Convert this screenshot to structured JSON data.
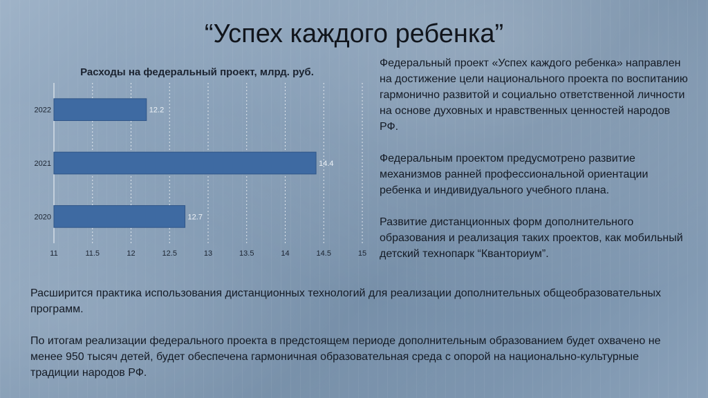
{
  "slide": {
    "title": "“Успех каждого ребенка”"
  },
  "chart_data": {
    "type": "bar",
    "orientation": "horizontal",
    "title": "Расходы на федеральный проект, млрд. руб.",
    "categories": [
      "2022",
      "2021",
      "2020"
    ],
    "values": [
      12.2,
      14.4,
      12.7
    ],
    "xlim": [
      11,
      15
    ],
    "xticks": [
      "11",
      "11.5",
      "12",
      "12.5",
      "13",
      "13.5",
      "14",
      "14.5",
      "15"
    ],
    "data_labels": [
      "12.2",
      "14.4",
      "12.7"
    ],
    "grid": true,
    "bar_color": "#3e6aa2"
  },
  "right_text": {
    "paragraphs": [
      "Федеральный проект «Успех каждого ребенка» направлен на достижение цели национального проекта по воспитанию гармонично развитой и социально ответственной личности на основе духовных и нравственных ценностей народов РФ.",
      "Федеральным проектом предусмотрено развитие механизмов ранней профессиональной ориентации ребенка и индивидуального учебного плана.",
      "Развитие дистанционных форм дополнительного образования и реализация таких проектов, как мобильный детский технопарк “Кванториум”."
    ]
  },
  "bottom_text": {
    "paragraphs": [
      "Расширится практика использования дистанционных технологий для реализации дополнительных общеобразовательных программ.",
      "По итогам реализации федерального проекта в предстоящем периоде дополнительным образованием будет охвачено не менее 950 тысяч детей, будет обеспечена гармоничная образовательная среда с опорой на национально-культурные традиции народов РФ."
    ]
  }
}
